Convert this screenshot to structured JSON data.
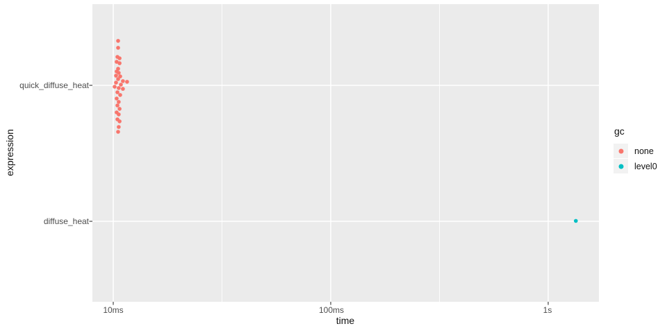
{
  "chart_data": {
    "type": "scatter",
    "title": "",
    "xlabel": "time",
    "ylabel": "expression",
    "x_scale": "log10",
    "x_ticks": [
      {
        "label": "10ms",
        "ms": 10
      },
      {
        "label": "100ms",
        "ms": 100
      },
      {
        "label": "1s",
        "ms": 1000
      }
    ],
    "x_minor_ticks_ms": [
      31.62,
      316.2
    ],
    "x_range_ms": [
      8,
      1700
    ],
    "y_categories": [
      {
        "label": "quick_diffuse_heat"
      },
      {
        "label": "diffuse_heat"
      }
    ],
    "legend": {
      "title": "gc",
      "entries": [
        {
          "label": "none",
          "color": "#F8766D"
        },
        {
          "label": "level0",
          "color": "#00BFC4"
        }
      ]
    },
    "series": [
      {
        "name": "none",
        "color": "#F8766D",
        "category": "quick_diffuse_heat",
        "points_ms_jitter": [
          [
            10.53,
            0.327
          ],
          [
            10.53,
            0.276
          ],
          [
            10.45,
            0.209
          ],
          [
            10.69,
            0.199
          ],
          [
            10.37,
            0.173
          ],
          [
            10.69,
            0.163
          ],
          [
            10.53,
            0.122
          ],
          [
            10.37,
            0.102
          ],
          [
            10.6,
            0.092
          ],
          [
            10.3,
            0.071
          ],
          [
            10.76,
            0.066
          ],
          [
            10.53,
            0.046
          ],
          [
            11.08,
            0.031
          ],
          [
            10.3,
            0.02
          ],
          [
            11.58,
            0.026
          ],
          [
            10.84,
            0.005
          ],
          [
            10.15,
            -0.01
          ],
          [
            10.6,
            -0.02
          ],
          [
            11.08,
            -0.026
          ],
          [
            10.45,
            -0.051
          ],
          [
            10.76,
            -0.071
          ],
          [
            10.37,
            -0.097
          ],
          [
            10.6,
            -0.122
          ],
          [
            10.45,
            -0.148
          ],
          [
            10.69,
            -0.173
          ],
          [
            10.37,
            -0.199
          ],
          [
            10.6,
            -0.214
          ],
          [
            10.45,
            -0.25
          ],
          [
            10.69,
            -0.265
          ],
          [
            10.6,
            -0.306
          ],
          [
            10.53,
            -0.342
          ]
        ]
      },
      {
        "name": "level0",
        "color": "#00BFC4",
        "category": "diffuse_heat",
        "points_ms_jitter": [
          [
            1340,
            0.003
          ]
        ]
      }
    ],
    "panel_bg": "#EBEBEB",
    "grid_color": "#FFFFFF",
    "tick_mark_color": "#333333",
    "legend_key_bg": "#F2F2F2",
    "axis_text_color": "#4D4D4D",
    "grid": true,
    "legend_position": "right"
  }
}
